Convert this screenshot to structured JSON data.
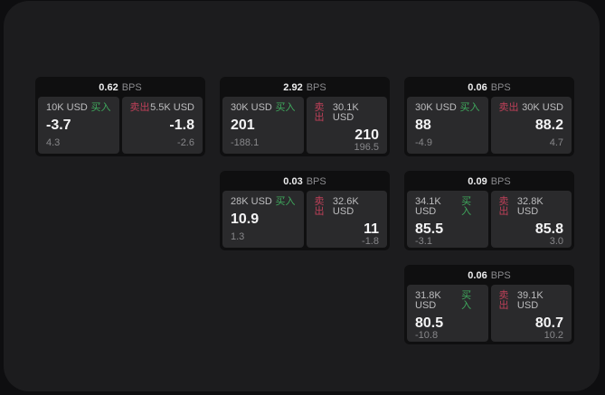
{
  "colors": {
    "surface": "#1c1c1e",
    "card": "#0f0f10",
    "panel": "#2a2a2c",
    "buy": "#3fa95d",
    "sell": "#bf4059"
  },
  "labels": {
    "bps_unit": "BPS",
    "buy": "买入",
    "sell": "卖出"
  },
  "cards": [
    {
      "bps": "0.62",
      "buy": {
        "notional": "10K USD",
        "price": "-3.7",
        "delta": "4.3"
      },
      "sell": {
        "notional": "5.5K USD",
        "price": "-1.8",
        "delta": "-2.6"
      }
    },
    {
      "bps": "2.92",
      "buy": {
        "notional": "30K USD",
        "price": "201",
        "delta": "-188.1"
      },
      "sell": {
        "notional": "30.1K USD",
        "price": "210",
        "delta": "196.5"
      }
    },
    {
      "bps": "0.06",
      "buy": {
        "notional": "30K USD",
        "price": "88",
        "delta": "-4.9"
      },
      "sell": {
        "notional": "30K USD",
        "price": "88.2",
        "delta": "4.7"
      }
    },
    {
      "bps": "0.03",
      "buy": {
        "notional": "28K USD",
        "price": "10.9",
        "delta": "1.3"
      },
      "sell": {
        "notional": "32.6K USD",
        "price": "11",
        "delta": "-1.8"
      }
    },
    {
      "bps": "0.09",
      "buy": {
        "notional": "34.1K USD",
        "price": "85.5",
        "delta": "-3.1"
      },
      "sell": {
        "notional": "32.8K USD",
        "price": "85.8",
        "delta": "3.0"
      }
    },
    {
      "bps": "0.06",
      "buy": {
        "notional": "31.8K USD",
        "price": "80.5",
        "delta": "-10.8"
      },
      "sell": {
        "notional": "39.1K USD",
        "price": "80.7",
        "delta": "10.2"
      }
    }
  ]
}
